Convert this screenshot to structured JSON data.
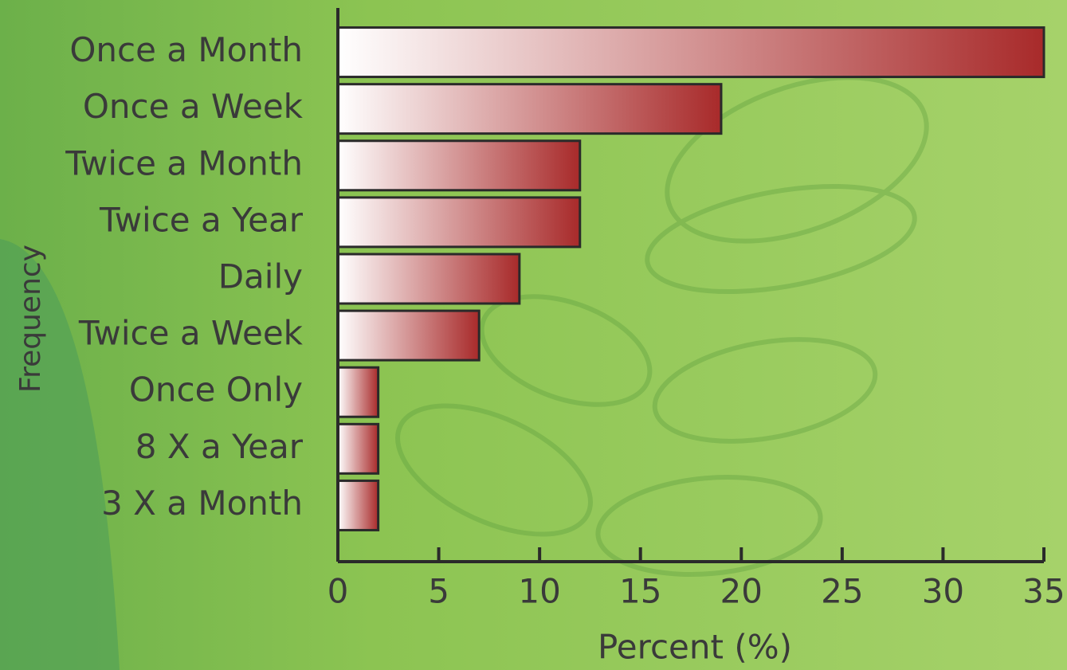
{
  "chart_data": {
    "type": "bar",
    "orientation": "horizontal",
    "categories": [
      "Once a Month",
      "Once a Week",
      "Twice a Month",
      "Twice a Year",
      "Daily",
      "Twice a Week",
      "Once Only",
      "8 X a Year",
      "3 X a Month"
    ],
    "values": [
      35,
      19,
      12,
      12,
      9,
      7,
      2,
      2,
      2
    ],
    "color": "#a82a2a",
    "xlim": [
      0,
      35
    ],
    "xticks": [
      0,
      5,
      10,
      15,
      20,
      25,
      30,
      35
    ],
    "xlabel": "Percent (%)",
    "ylabel": "Frequency"
  }
}
